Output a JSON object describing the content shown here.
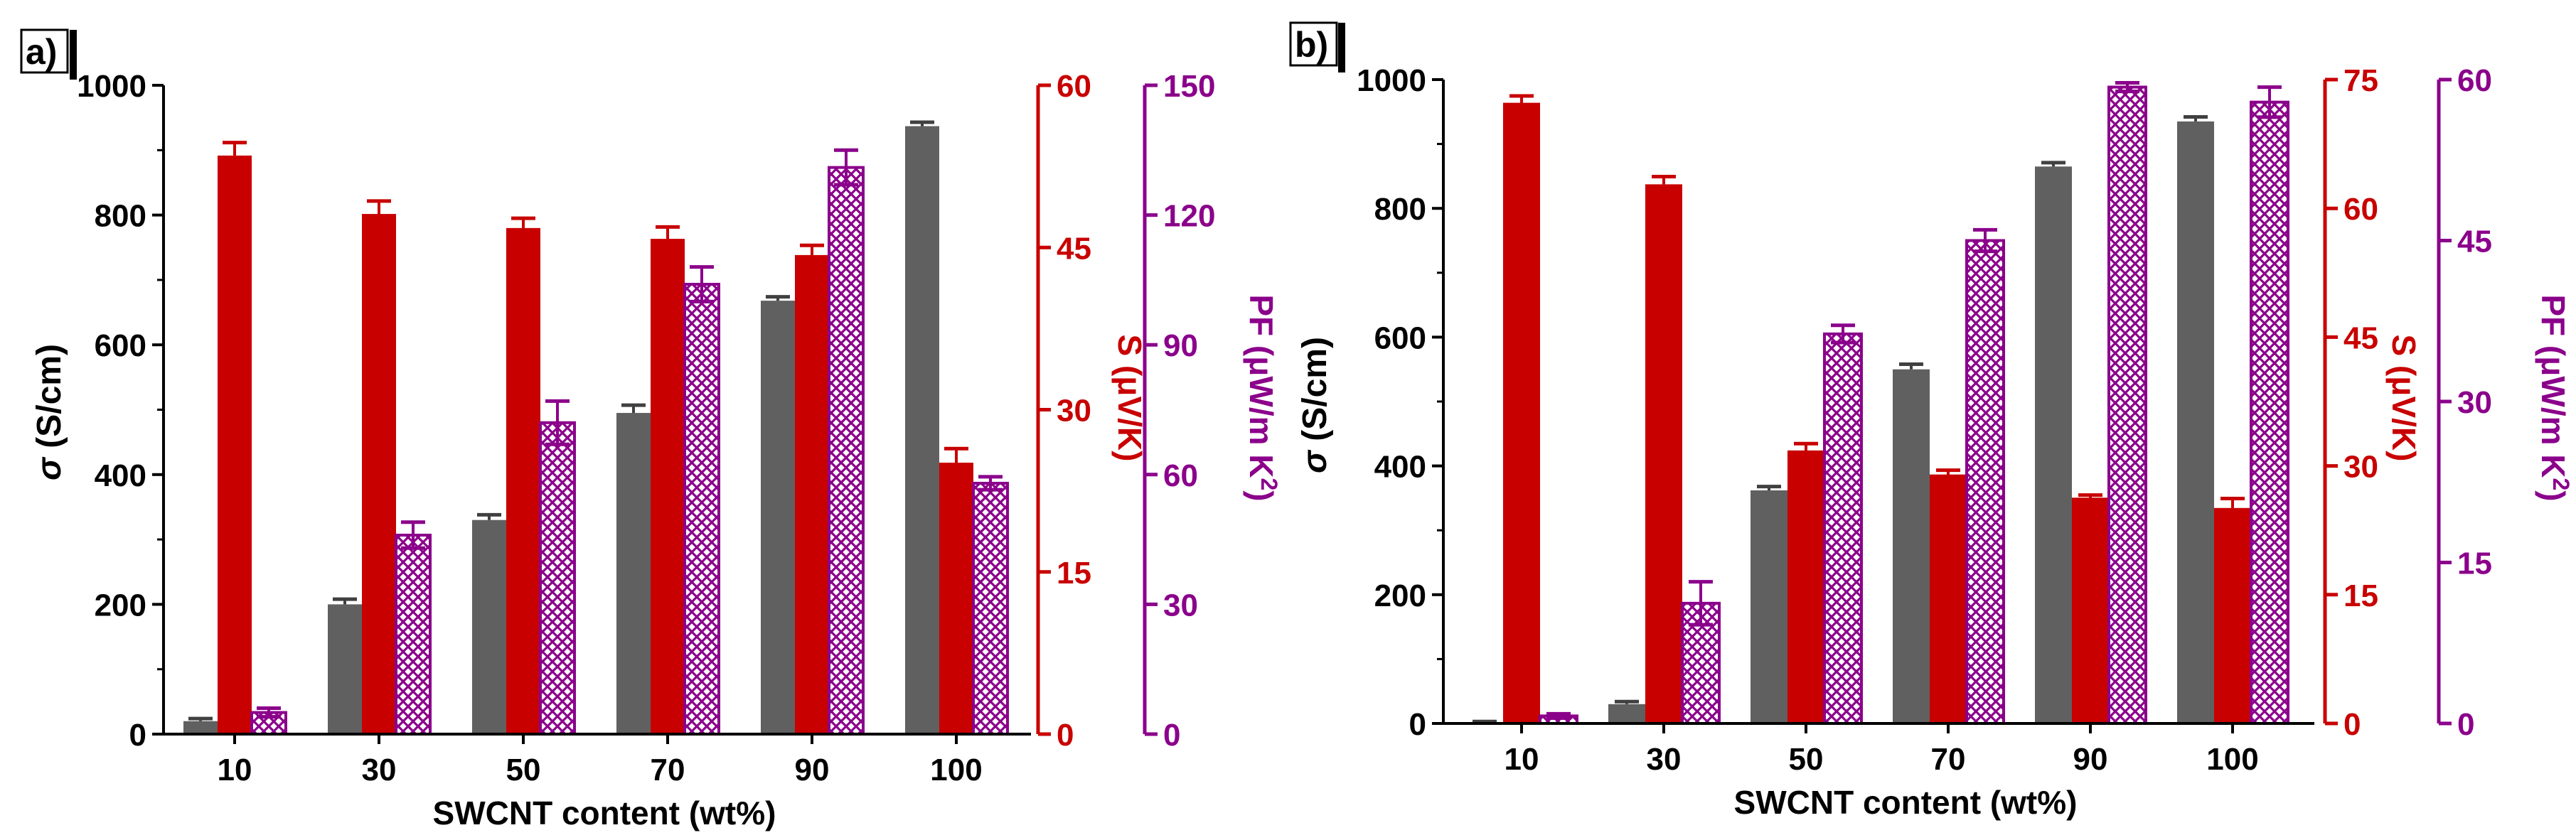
{
  "figure": {
    "xlabel": "SWCNT content (wt%)",
    "sigma_symbol": "σ",
    "sigma_unit": " (S/cm)",
    "seebeck_label": "S (μV/K)",
    "pf_label_main": "PF (μW/m K",
    "pf_label_sup": "2",
    "pf_label_close": ")"
  },
  "colors": {
    "sigma": "#606060",
    "seebeck": "#c80000",
    "pf": "#8b008b",
    "axis": "#000000"
  },
  "chart_data": [
    {
      "panel": "a",
      "panel_label": "a)",
      "type": "bar",
      "categories": [
        "10",
        "30",
        "50",
        "70",
        "90",
        "100"
      ],
      "xlabel": "SWCNT content (wt%)",
      "axes": {
        "sigma": {
          "ylim": [
            0,
            1000
          ],
          "ticks": [
            0,
            200,
            400,
            600,
            800,
            1000
          ],
          "label": "σ (S/cm)"
        },
        "seebeck": {
          "ylim": [
            0,
            60
          ],
          "ticks": [
            0,
            15,
            30,
            45,
            60
          ],
          "label": "S (μV/K)"
        },
        "pf": {
          "ylim": [
            0,
            150
          ],
          "ticks": [
            0,
            30,
            60,
            90,
            120,
            150
          ],
          "label": "PF (μW/m K2)"
        }
      },
      "series": [
        {
          "name": "sigma",
          "axis": "sigma",
          "values": [
            20,
            200,
            330,
            495,
            668,
            937
          ],
          "errors": [
            4,
            8,
            8,
            12,
            6,
            6
          ]
        },
        {
          "name": "seebeck",
          "axis": "seebeck",
          "values": [
            53.5,
            48.1,
            46.8,
            45.8,
            44.3,
            25.1
          ],
          "errors": [
            1.2,
            1.2,
            0.9,
            1.1,
            0.9,
            1.3
          ]
        },
        {
          "name": "PF",
          "axis": "pf",
          "values": [
            5,
            46,
            72,
            104,
            131,
            58
          ],
          "errors": [
            1,
            3,
            5,
            4,
            4,
            1.5
          ]
        }
      ]
    },
    {
      "panel": "b",
      "panel_label": "b)",
      "type": "bar",
      "categories": [
        "10",
        "30",
        "50",
        "70",
        "90",
        "100"
      ],
      "xlabel": "SWCNT content (wt%)",
      "axes": {
        "sigma": {
          "ylim": [
            0,
            1000
          ],
          "ticks": [
            0,
            200,
            400,
            600,
            800,
            1000
          ],
          "label": "σ (S/cm)"
        },
        "seebeck": {
          "ylim": [
            0,
            75
          ],
          "ticks": [
            0,
            15,
            30,
            45,
            60,
            75
          ],
          "label": "S (μV/K)"
        },
        "pf": {
          "ylim": [
            0,
            60
          ],
          "ticks": [
            0,
            15,
            30,
            45,
            60
          ],
          "label": "PF (μW/m K2)"
        }
      },
      "series": [
        {
          "name": "sigma",
          "axis": "sigma",
          "values": [
            2,
            30,
            362,
            550,
            865,
            935
          ],
          "errors": [
            1,
            4,
            6,
            8,
            6,
            7
          ]
        },
        {
          "name": "seebeck",
          "axis": "seebeck",
          "values": [
            72.3,
            62.8,
            31.8,
            29.0,
            26.3,
            25.1
          ],
          "errors": [
            0.8,
            0.9,
            0.8,
            0.5,
            0.3,
            1.1
          ]
        },
        {
          "name": "PF",
          "axis": "pf",
          "values": [
            0.7,
            11.2,
            36.3,
            45.0,
            59.3,
            57.9
          ],
          "errors": [
            0.2,
            2.0,
            0.8,
            1.0,
            0.4,
            1.4
          ]
        }
      ]
    }
  ]
}
